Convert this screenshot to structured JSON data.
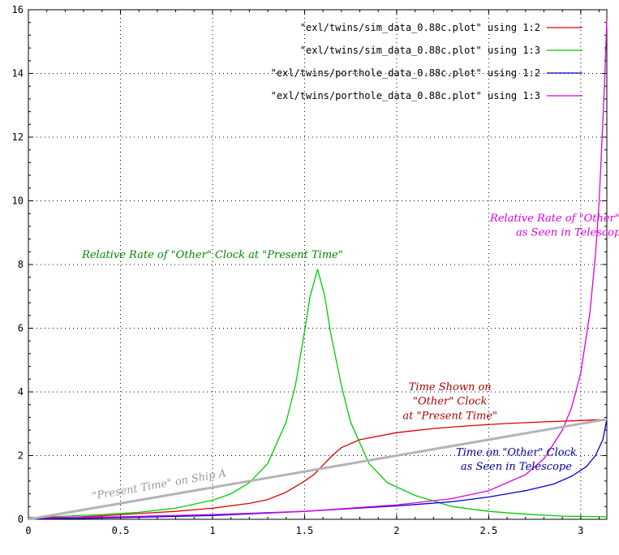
{
  "chart_data": {
    "type": "line",
    "title": "",
    "xlabel": "",
    "ylabel": "",
    "xlim": [
      0,
      3.1416
    ],
    "ylim": [
      0,
      16
    ],
    "grid": true,
    "legend_position": "top-right",
    "x_ticks": [
      "0",
      "0.5",
      "1",
      "1.5",
      "2",
      "2.5",
      "3"
    ],
    "y_ticks": [
      "0",
      "2",
      "4",
      "6",
      "8",
      "10",
      "12",
      "14",
      "16"
    ],
    "series": [
      {
        "name": "\"exl/twins/sim_data_0.88c.plot\" using 1:2",
        "color": "#dd0000",
        "x": [
          0,
          0.2,
          0.4,
          0.6,
          0.8,
          1.0,
          1.2,
          1.3,
          1.4,
          1.5,
          1.55,
          1.6,
          1.65,
          1.7,
          1.8,
          2.0,
          2.2,
          2.4,
          2.6,
          2.8,
          3.0,
          3.1416
        ],
        "y": [
          0,
          0.05,
          0.11,
          0.18,
          0.25,
          0.35,
          0.5,
          0.62,
          0.85,
          1.2,
          1.4,
          1.7,
          2.0,
          2.25,
          2.5,
          2.72,
          2.85,
          2.94,
          3.01,
          3.06,
          3.1,
          3.14
        ]
      },
      {
        "name": "\"exl/twins/sim_data_0.88c.plot\" using 1:3",
        "color": "#00cc00",
        "x": [
          0,
          0.2,
          0.4,
          0.6,
          0.8,
          1.0,
          1.1,
          1.2,
          1.3,
          1.4,
          1.45,
          1.5,
          1.53,
          1.5708,
          1.61,
          1.64,
          1.7,
          1.75,
          1.85,
          1.95,
          2.1,
          2.3,
          2.5,
          2.7,
          2.9,
          3.1416
        ],
        "y": [
          0.05,
          0.1,
          0.15,
          0.22,
          0.35,
          0.6,
          0.8,
          1.15,
          1.75,
          3.05,
          4.2,
          5.9,
          7.0,
          7.85,
          7.0,
          5.9,
          4.2,
          3.05,
          1.75,
          1.15,
          0.75,
          0.4,
          0.25,
          0.16,
          0.1,
          0.08
        ]
      },
      {
        "name": "\"exl/twins/porthole_data_0.88c.plot\" using 1:2",
        "color": "#0000cc",
        "x": [
          0,
          0.5,
          1.0,
          1.5,
          2.0,
          2.3,
          2.5,
          2.7,
          2.85,
          2.95,
          3.03,
          3.08,
          3.12,
          3.1416
        ],
        "y": [
          0,
          0.05,
          0.12,
          0.25,
          0.42,
          0.55,
          0.7,
          0.9,
          1.1,
          1.35,
          1.65,
          2.0,
          2.5,
          3.14
        ]
      },
      {
        "name": "\"exl/twins/porthole_data_0.88c.plot\" using 1:3",
        "color": "#dd00dd",
        "x": [
          0,
          0.5,
          1.0,
          1.5,
          2.0,
          2.3,
          2.5,
          2.7,
          2.8,
          2.9,
          2.95,
          3.0,
          3.05,
          3.08,
          3.1,
          3.12,
          3.13,
          3.1416
        ],
        "y": [
          0.05,
          0.08,
          0.15,
          0.25,
          0.45,
          0.65,
          0.9,
          1.4,
          1.9,
          2.8,
          3.5,
          4.6,
          6.5,
          8.3,
          10.0,
          12.5,
          13.8,
          15.7
        ]
      },
      {
        "name": "",
        "color": "#b4b4b4",
        "x": [
          0,
          3.1416
        ],
        "y": [
          0,
          3.1416
        ]
      }
    ],
    "annotations": [
      {
        "text": "Relative Rate of  \"Other\" Clock at \"Present Time\"",
        "x": 1.0,
        "y": 8.2,
        "color": "#008800"
      },
      {
        "text": "Relative Rate of  \"Other\" Clock",
        "x": 2.95,
        "y": 9.35,
        "color": "#dd00dd"
      },
      {
        "text": "as Seen in Telescope",
        "x": 2.95,
        "y": 8.9,
        "color": "#dd00dd"
      },
      {
        "text": "Time Shown on",
        "x": 2.29,
        "y": 4.05,
        "color": "#aa0000"
      },
      {
        "text": "\"Other\" Clock",
        "x": 2.29,
        "y": 3.6,
        "color": "#aa0000"
      },
      {
        "text": "at \"Present Time\"",
        "x": 2.29,
        "y": 3.15,
        "color": "#aa0000"
      },
      {
        "text": "Time on \"Other\" Clock",
        "x": 2.65,
        "y": 2.0,
        "color": "#000099"
      },
      {
        "text": "as Seen in Telescope",
        "x": 2.65,
        "y": 1.55,
        "color": "#000099"
      },
      {
        "text": "\"Present Time\" on Ship A",
        "x": 0.35,
        "y": 0.62,
        "color": "#999999",
        "rotate": true
      }
    ]
  }
}
